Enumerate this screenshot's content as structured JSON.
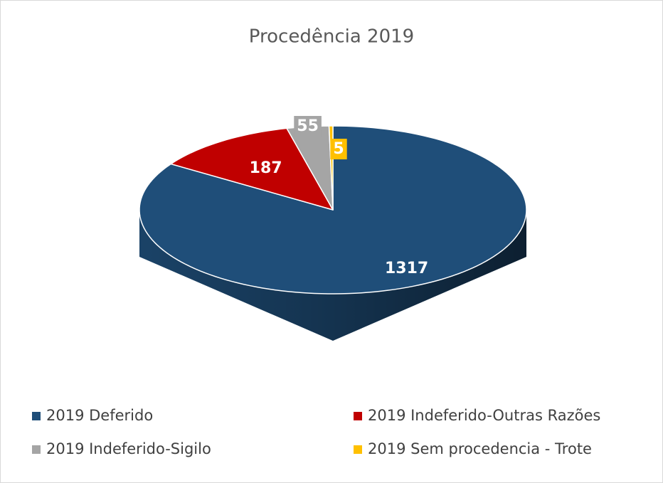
{
  "chart_data": {
    "type": "pie3d",
    "title": "Procedência 2019",
    "categories": [
      "2019 Deferido",
      "2019 Indeferido-Outras Razões",
      "2019 Indeferido-Sigilo",
      "2019 Sem procedencia - Trote"
    ],
    "values": [
      1317,
      187,
      55,
      5
    ],
    "colors": [
      "#1f4e79",
      "#c00000",
      "#a5a5a5",
      "#ffc000"
    ],
    "legend": "bottom"
  }
}
